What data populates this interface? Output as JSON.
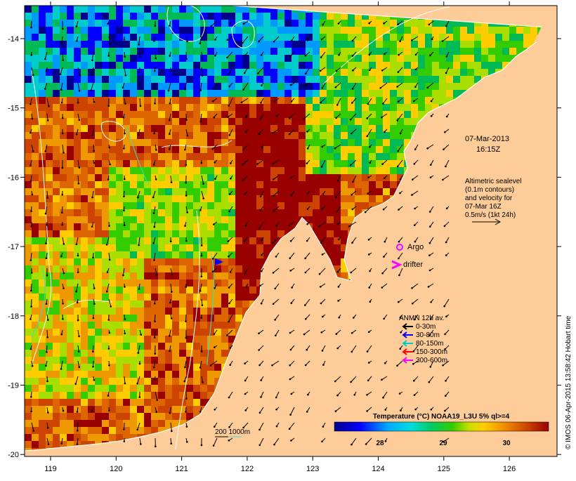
{
  "map": {
    "date_label": "07-Mar-2013",
    "time_label": "16:15Z",
    "altimetry_lines": [
      "Altimetric sealevel",
      "(0.1m contours)",
      "and velocity for",
      "07-Mar 16Z",
      "0.5m/s (1kt 24h)"
    ],
    "argo_label": "Argo",
    "drifter_label": "drifter",
    "anmn": {
      "title": "ANMN 12h av.",
      "items": [
        {
          "label": "0-30m",
          "color": "#000000"
        },
        {
          "label": "30-80m",
          "color": "#0000ff"
        },
        {
          "label": "80-150m",
          "color": "#00cccc"
        },
        {
          "label": "150-300m",
          "color": "#ff0000"
        },
        {
          "label": "300-600m",
          "color": "#ff00ff"
        }
      ]
    },
    "bathy_label": "200  1000m",
    "colorbar": {
      "title": "Temperature (°C) NOAA19_L3U 5% ql>=4",
      "ticks": [
        "28",
        "29",
        "30"
      ]
    },
    "credit": "© IMOS 06-Apr-2015 13:58:42 Hobart time",
    "axes": {
      "x_ticks": [
        "119",
        "120",
        "121",
        "122",
        "123",
        "124",
        "125",
        "126"
      ],
      "y_ticks": [
        "-14",
        "-15",
        "-16",
        "-17",
        "-18",
        "-19",
        "-20"
      ]
    },
    "colors": {
      "land": "#fdcc99",
      "coast": "#ffffff",
      "marker_argo": "#ff00ff",
      "marker_drifter": "#ff00ff"
    }
  }
}
